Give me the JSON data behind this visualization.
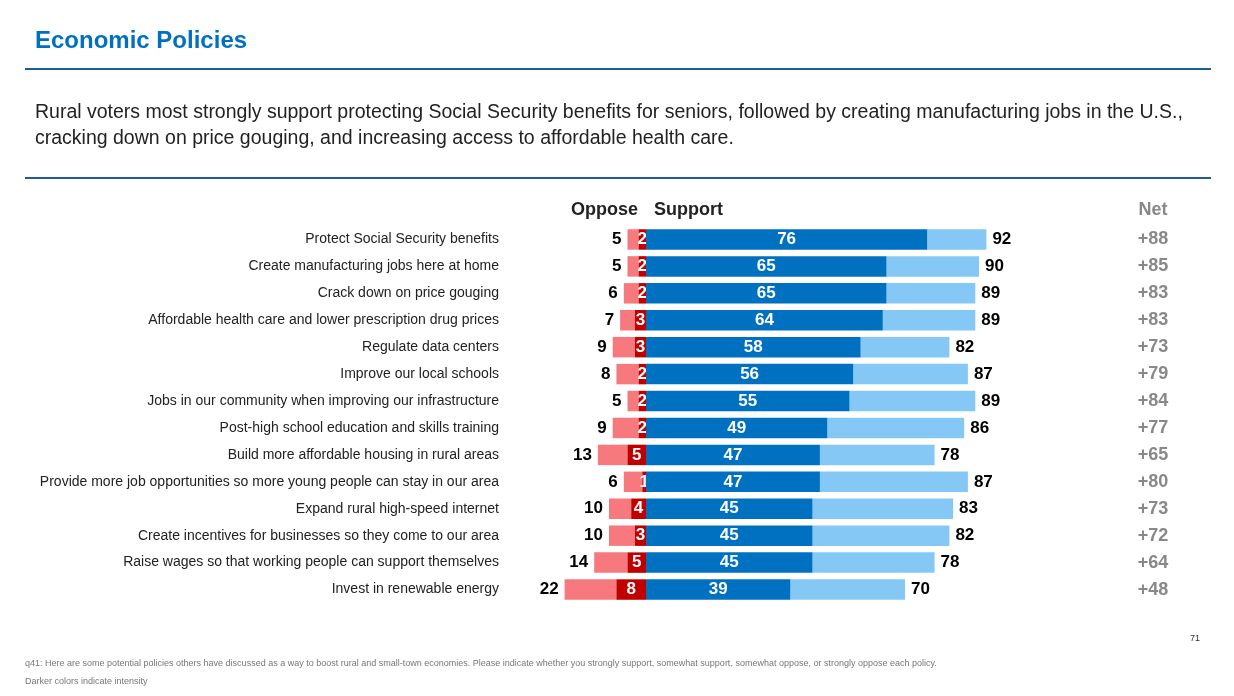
{
  "chart_data": [
    {
      "type": "bar",
      "orientation": "horizontal",
      "stacked": true,
      "title": "Economic Policies",
      "subtitle": "Rural voters most strongly support protecting Social Security benefits for seniors, followed by creating manufacturing jobs in the U.S., cracking down on price gouging, and increasing access to affordable health care.",
      "categories": [
        "Protect Social Security benefits",
        "Create manufacturing jobs here at home",
        "Crack down on price gouging",
        "Affordable health care and lower prescription drug prices",
        "Regulate data centers",
        "Improve our local schools",
        "Jobs in our community when improving our infrastructure",
        "Post-high school education and skills training",
        "Build more affordable housing in rural areas",
        "Provide more job opportunities so more young people can stay in our area",
        "Expand rural high-speed internet",
        "Create incentives for businesses so they come to our area",
        "Raise wages so that working people can support themselves",
        "Invest in renewable energy"
      ],
      "series": [
        {
          "color": "#c00000",
          "values": [
            2,
            2,
            2,
            3,
            3,
            2,
            2,
            2,
            5,
            1,
            4,
            3,
            5,
            8
          ],
          "value_labels": [
            "2",
            "2",
            "2",
            "3",
            "3",
            "2",
            "2",
            "2",
            "5",
            "1",
            "4",
            "3",
            "5",
            "8"
          ]
        },
        {
          "color": "#f8797d",
          "values": [
            3,
            3,
            4,
            4,
            6,
            6,
            3,
            7,
            8,
            5,
            6,
            7,
            9,
            14
          ]
        }
      ],
      "totals": [
        "5",
        "5",
        "6",
        "7",
        "9",
        "8",
        "5",
        "9",
        "13",
        "6",
        "10",
        "10",
        "14",
        "22"
      ],
      "annotations": [
        "Oppose",
        "q41: Here are some potential policies others have discussed as a way to boost rural and small-town economies. Please indicate whether you strongly support, somewhat support, somewhat oppose, or strongly oppose each policy.",
        "Darker colors indicate intensity",
        "71"
      ],
      "tick_labels": "y",
      "legend": false,
      "grid": false
    },
    {
      "type": "bar",
      "orientation": "horizontal",
      "stacked": true,
      "categories": [
        null,
        null,
        null,
        null,
        null,
        null,
        null,
        null,
        null,
        null,
        null,
        null,
        null,
        null
      ],
      "series": [
        {
          "color": "#0070c0",
          "values": [
            76,
            65,
            65,
            64,
            58,
            56,
            55,
            49,
            47,
            47,
            45,
            45,
            45,
            39
          ],
          "value_labels": [
            "76",
            "65",
            "65",
            "64",
            "58",
            "56",
            "55",
            "49",
            "47",
            "47",
            "45",
            "45",
            "45",
            "39"
          ]
        },
        {
          "color": "#85c8f5",
          "values": [
            16,
            25,
            24,
            25,
            24,
            31,
            34,
            37,
            31,
            40,
            38,
            37,
            33,
            31
          ]
        }
      ],
      "totals": [
        "92",
        "90",
        "89",
        "89",
        "82",
        "87",
        "89",
        "86",
        "78",
        "87",
        "83",
        "82",
        "78",
        "70"
      ],
      "annotations": [
        "Support",
        "Net",
        "+88",
        "+85",
        "+83",
        "+83",
        "+73",
        "+79",
        "+84",
        "+77",
        "+65",
        "+80",
        "+73",
        "+72",
        "+64",
        "+48"
      ],
      "tick_labels": false,
      "legend": false,
      "grid": false
    }
  ]
}
